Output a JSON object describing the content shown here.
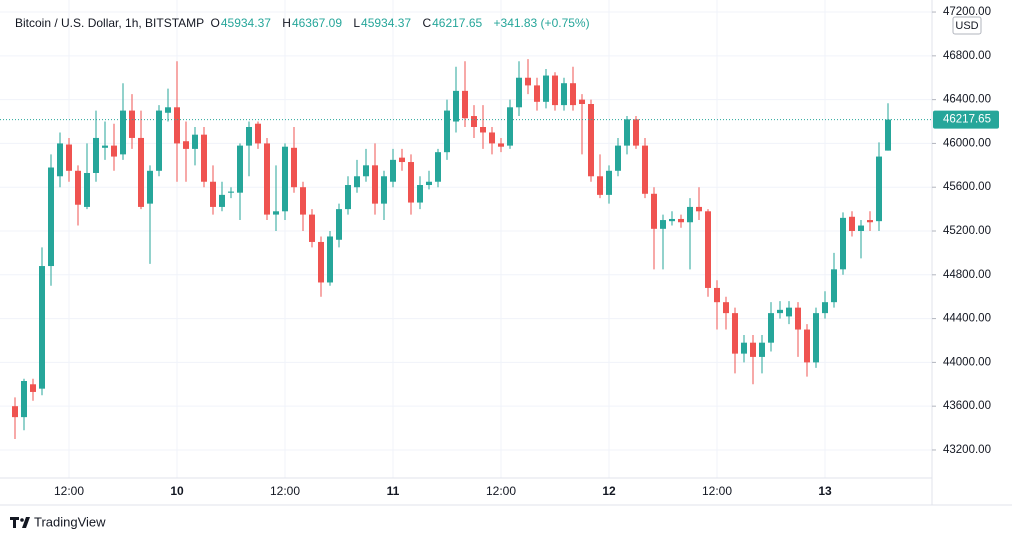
{
  "chart_data": {
    "type": "candlestick",
    "title": "Bitcoin / U.S. Dollar, 1h, BITSTAMP",
    "header_labels": {
      "open": "O",
      "high": "H",
      "low": "L",
      "close": "C"
    },
    "change": "+341.83 (+0.75%)",
    "currency": "USD",
    "brand": "TradingView",
    "up_color": "#26a69a",
    "down_color": "#ef5350",
    "grid": true,
    "categories": [
      null,
      null,
      null,
      null,
      null,
      null,
      "12:00",
      null,
      null,
      null,
      null,
      null,
      null,
      null,
      null,
      null,
      null,
      null,
      "10",
      null,
      null,
      null,
      null,
      null,
      null,
      null,
      null,
      null,
      null,
      null,
      "12:00",
      null,
      null,
      null,
      null,
      null,
      null,
      null,
      null,
      null,
      null,
      null,
      "11",
      null,
      null,
      null,
      null,
      null,
      null,
      null,
      null,
      null,
      null,
      null,
      "12:00",
      null,
      null,
      null,
      null,
      null,
      null,
      null,
      null,
      null,
      null,
      null,
      "12",
      null,
      null,
      null,
      null,
      null,
      null,
      null,
      null,
      null,
      null,
      null,
      "12:00",
      null,
      null,
      null,
      null,
      null,
      null,
      null,
      null,
      null,
      null,
      null,
      "13",
      null,
      null,
      null,
      null,
      null,
      null,
      null
    ],
    "open": [
      43600,
      43500,
      43800,
      43760,
      44880,
      45700,
      45990,
      45750,
      45420,
      45730,
      45960,
      45980,
      45900,
      46300,
      46050,
      45450,
      45750,
      46280,
      46330,
      46020,
      45950,
      46080,
      45650,
      45420,
      45550,
      45550,
      45980,
      46180,
      46000,
      45350,
      45380,
      45960,
      45600,
      45350,
      45100,
      44730,
      45120,
      45400,
      45600,
      45700,
      45800,
      45450,
      45650,
      45870,
      45830,
      45460,
      45620,
      45650,
      45920,
      46200,
      46480,
      46250,
      46150,
      46100,
      46000,
      45980,
      46330,
      46600,
      46530,
      46380,
      46620,
      46350,
      46550,
      46400,
      46360,
      45700,
      45530,
      45750,
      45980,
      46220,
      45980,
      45540,
      45220,
      45290,
      45310,
      45280,
      45420,
      45380,
      44680,
      44550,
      44450,
      44080,
      44180,
      44050,
      44180,
      44450,
      44420,
      44500,
      44300,
      44000,
      44450,
      44550,
      44850,
      45330,
      45200,
      45300,
      45290,
      45934.37
    ],
    "high": [
      43680,
      43850,
      43850,
      45050,
      45900,
      46100,
      46050,
      45800,
      46000,
      46300,
      46200,
      46180,
      46550,
      46450,
      46300,
      45800,
      46350,
      46500,
      46750,
      46200,
      46150,
      46150,
      45800,
      45650,
      45600,
      46000,
      46200,
      46200,
      46050,
      45800,
      46000,
      46150,
      45650,
      45400,
      45150,
      45200,
      45450,
      45700,
      45850,
      45950,
      46000,
      45750,
      45950,
      45950,
      45900,
      45700,
      45750,
      45950,
      46400,
      46700,
      46750,
      46350,
      46350,
      46150,
      46050,
      46400,
      46750,
      46770,
      46600,
      46680,
      46650,
      46600,
      46700,
      46450,
      46400,
      45900,
      45800,
      46050,
      46250,
      46250,
      46050,
      45600,
      45350,
      45380,
      45350,
      45500,
      45600,
      45400,
      44750,
      44600,
      44500,
      44250,
      44250,
      44250,
      44550,
      44560,
      44560,
      44550,
      44350,
      44500,
      44650,
      45000,
      45370,
      45380,
      45300,
      45380,
      46010,
      46367.09
    ],
    "low": [
      43300,
      43380,
      43650,
      43700,
      44700,
      45600,
      45650,
      45250,
      45400,
      45650,
      45850,
      45750,
      45850,
      45950,
      45400,
      44900,
      45700,
      46200,
      45650,
      45650,
      45800,
      45600,
      45350,
      45380,
      45500,
      45300,
      45700,
      45950,
      45300,
      45200,
      45300,
      45550,
      45200,
      45050,
      44600,
      44700,
      45050,
      45350,
      45550,
      45650,
      45350,
      45300,
      45600,
      45750,
      45350,
      45400,
      45580,
      45600,
      45850,
      46100,
      46150,
      46050,
      45950,
      45900,
      45920,
      45950,
      46250,
      46450,
      46300,
      46320,
      46300,
      46300,
      46300,
      45900,
      45650,
      45500,
      45450,
      45700,
      45900,
      45950,
      45500,
      44850,
      44850,
      45250,
      45230,
      44850,
      45300,
      44600,
      44300,
      44300,
      43900,
      44000,
      43800,
      43900,
      44100,
      44400,
      44350,
      44050,
      43870,
      43950,
      44400,
      44500,
      44800,
      45150,
      44950,
      45200,
      45200,
      45934.37
    ],
    "close": [
      43500,
      43830,
      43730,
      44880,
      45780,
      46000,
      45750,
      45440,
      45730,
      46050,
      45980,
      45880,
      46300,
      46050,
      45420,
      45750,
      46300,
      46330,
      46000,
      45950,
      46080,
      45650,
      45420,
      45530,
      45560,
      45980,
      46150,
      46000,
      45350,
      45380,
      45970,
      45600,
      45350,
      45100,
      44730,
      45150,
      45400,
      45620,
      45700,
      45800,
      45450,
      45700,
      45850,
      45830,
      45460,
      45620,
      45650,
      45920,
      46300,
      46480,
      46230,
      46150,
      46100,
      46000,
      45970,
      46330,
      46600,
      46530,
      46380,
      46620,
      46350,
      46550,
      46350,
      46360,
      45700,
      45530,
      45750,
      45980,
      46220,
      45980,
      45540,
      45220,
      45300,
      45310,
      45280,
      45420,
      45380,
      44680,
      44550,
      44450,
      44080,
      44180,
      44050,
      44180,
      44450,
      44480,
      44500,
      44300,
      44000,
      44450,
      44550,
      44850,
      45320,
      45200,
      45250,
      45280,
      45880,
      46217.65
    ],
    "ylim": [
      42944,
      47310
    ],
    "yticks": [
      {
        "value": 43200,
        "label": "43200.00"
      },
      {
        "value": 43600,
        "label": "43600.00"
      },
      {
        "value": 44000,
        "label": "44000.00"
      },
      {
        "value": 44400,
        "label": "44400.00"
      },
      {
        "value": 44800,
        "label": "44800.00"
      },
      {
        "value": 45200,
        "label": "45200.00"
      },
      {
        "value": 45600,
        "label": "45600.00"
      },
      {
        "value": 46000,
        "label": "46000.00"
      },
      {
        "value": 46400,
        "label": "46400.00"
      },
      {
        "value": 46800,
        "label": "46800.00"
      },
      {
        "value": 47200,
        "label": "47200.00"
      }
    ]
  }
}
